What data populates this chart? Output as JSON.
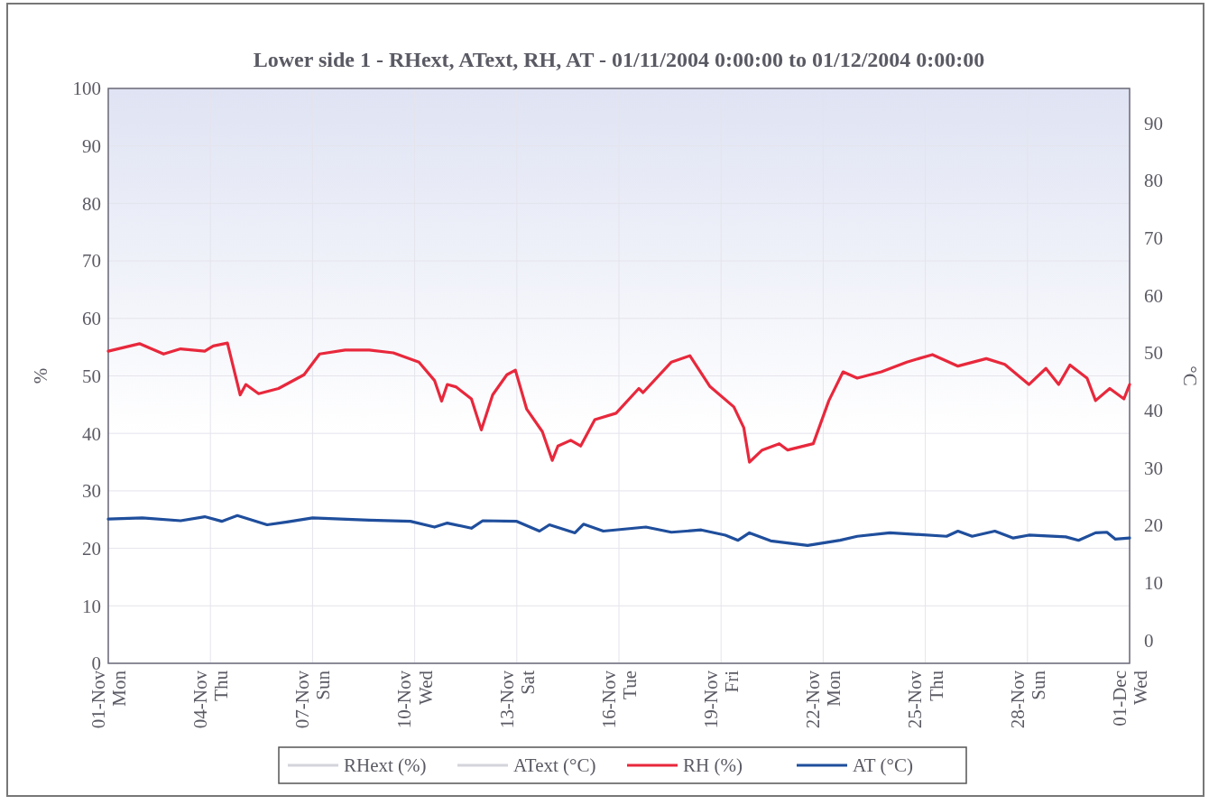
{
  "chart_data": {
    "type": "line",
    "title": "Lower side 1 - RHext, AText, RH, AT - 01/11/2004 0:00:00 to 01/12/2004 0:00:00",
    "ylabel": "%",
    "y2label": "°C",
    "xlim": [
      "2004-11-01T00:00",
      "2004-12-01T00:00"
    ],
    "xticks": [
      {
        "value": "2004-11-01",
        "label": "01-Nov\nMon"
      },
      {
        "value": "2004-11-04",
        "label": "04-Nov\nThu"
      },
      {
        "value": "2004-11-07",
        "label": "07-Nov\nSun"
      },
      {
        "value": "2004-11-10",
        "label": "10-Nov\nWed"
      },
      {
        "value": "2004-11-13",
        "label": "13-Nov\nSat"
      },
      {
        "value": "2004-11-16",
        "label": "16-Nov\nTue"
      },
      {
        "value": "2004-11-19",
        "label": "19-Nov\nFri"
      },
      {
        "value": "2004-11-22",
        "label": "22-Nov\nMon"
      },
      {
        "value": "2004-11-25",
        "label": "25-Nov\nThu"
      },
      {
        "value": "2004-11-28",
        "label": "28-Nov\nSun"
      },
      {
        "value": "2004-12-01",
        "label": "01-Dec\nWed"
      }
    ],
    "ylim": [
      0,
      100
    ],
    "yticks": [
      0,
      10,
      20,
      30,
      40,
      50,
      60,
      70,
      80,
      90,
      100
    ],
    "y2lim": [
      -4,
      96
    ],
    "y2ticks": [
      0,
      10,
      20,
      30,
      40,
      50,
      60,
      70,
      80,
      90
    ],
    "grid": true,
    "legend": "bottom",
    "line_style": "solid",
    "marker": "none",
    "series": [
      {
        "name": "RHext (%)",
        "color": "#d4d4dc"
      },
      {
        "name": "AText (°C)",
        "color": "#d4d4dc"
      },
      {
        "name": "RH (%)",
        "color": "#e8283c",
        "x": [
          "2004-11-01T00:00",
          "2004-11-01T22:00",
          "2004-11-02T15:00",
          "2004-11-03T03:00",
          "2004-11-03T20:00",
          "2004-11-04T02:00",
          "2004-11-04T12:00",
          "2004-11-04T21:00",
          "2004-11-05T01:00",
          "2004-11-05T10:00",
          "2004-11-06T00:00",
          "2004-11-06T18:00",
          "2004-11-07T05:00",
          "2004-11-07T23:00",
          "2004-11-08T16:00",
          "2004-11-09T09:00",
          "2004-11-10T03:00",
          "2004-11-10T14:00",
          "2004-11-10T19:00",
          "2004-11-10T23:00",
          "2004-11-11T05:00",
          "2004-11-11T16:00",
          "2004-11-11T23:00",
          "2004-11-12T07:00",
          "2004-11-12T17:00",
          "2004-11-12T23:00",
          "2004-11-13T07:00",
          "2004-11-13T18:00",
          "2004-11-14T01:00",
          "2004-11-14T05:00",
          "2004-11-14T14:00",
          "2004-11-14T21:00",
          "2004-11-15T07:00",
          "2004-11-15T22:00",
          "2004-11-16T14:00",
          "2004-11-16T17:00",
          "2004-11-17T13:00",
          "2004-11-18T02:00",
          "2004-11-18T16:00",
          "2004-11-19T09:00",
          "2004-11-19T16:00",
          "2004-11-19T20:00",
          "2004-11-20T05:00",
          "2004-11-20T17:00",
          "2004-11-20T23:00",
          "2004-11-21T17:00",
          "2004-11-22T04:00",
          "2004-11-22T14:00",
          "2004-11-23T00:00",
          "2004-11-23T17:00",
          "2004-11-24T11:00",
          "2004-11-25T05:00",
          "2004-11-25T23:00",
          "2004-11-26T19:00",
          "2004-11-27T08:00",
          "2004-11-28T01:00",
          "2004-11-28T13:00",
          "2004-11-28T22:00",
          "2004-11-29T06:00",
          "2004-11-29T18:00",
          "2004-11-30T00:00",
          "2004-11-30T10:00",
          "2004-11-30T20:00",
          "2004-12-01T00:00"
        ],
        "values": [
          54.3,
          55.6,
          53.8,
          54.7,
          54.3,
          55.2,
          55.7,
          46.7,
          48.5,
          46.9,
          47.8,
          50.2,
          53.8,
          54.5,
          54.5,
          54,
          52.4,
          49.2,
          45.6,
          48.5,
          48.1,
          46,
          40.6,
          46.7,
          50.2,
          51,
          44.2,
          40.3,
          35.3,
          37.8,
          38.8,
          37.8,
          42.4,
          43.5,
          47.8,
          47.1,
          52.4,
          53.5,
          48.2,
          44.6,
          41,
          35,
          37.1,
          38.2,
          37.1,
          38.2,
          45.7,
          50.7,
          49.6,
          50.7,
          52.4,
          53.7,
          51.7,
          53,
          52,
          48.5,
          51.3,
          48.5,
          51.9,
          49.6,
          45.7,
          47.8,
          46,
          48.5
        ]
      },
      {
        "name": "AT (°C)",
        "color": "#1f4e9c",
        "axis": "y2",
        "x": [
          "2004-11-01T00:00",
          "2004-11-02T00:00",
          "2004-11-03T03:00",
          "2004-11-03T20:00",
          "2004-11-04T08:00",
          "2004-11-04T19:00",
          "2004-11-05T16:00",
          "2004-11-06T06:00",
          "2004-11-07T00:00",
          "2004-11-08T16:00",
          "2004-11-09T21:00",
          "2004-11-10T14:00",
          "2004-11-10T23:00",
          "2004-11-11T16:00",
          "2004-11-12T00:00",
          "2004-11-13T00:00",
          "2004-11-13T16:00",
          "2004-11-13T23:00",
          "2004-11-14T17:00",
          "2004-11-14T23:00",
          "2004-11-15T13:00",
          "2004-11-16T19:00",
          "2004-11-17T13:00",
          "2004-11-18T10:00",
          "2004-11-19T03:00",
          "2004-11-19T12:00",
          "2004-11-19T20:00",
          "2004-11-20T11:00",
          "2004-11-21T13:00",
          "2004-11-22T12:00",
          "2004-11-23T00:00",
          "2004-11-23T23:00",
          "2004-11-25T15:00",
          "2004-11-25T23:00",
          "2004-11-26T09:00",
          "2004-11-27T01:00",
          "2004-11-27T14:00",
          "2004-11-28T01:00",
          "2004-11-29T03:00",
          "2004-11-29T12:00",
          "2004-11-30T00:00",
          "2004-11-30T08:00",
          "2004-11-30T14:00",
          "2004-12-01T00:00"
        ],
        "values": [
          21.1,
          21.3,
          20.8,
          21.5,
          20.7,
          21.7,
          20.1,
          20.6,
          21.3,
          20.9,
          20.7,
          19.7,
          20.4,
          19.5,
          20.8,
          20.7,
          19.0,
          20.1,
          18.7,
          20.2,
          19.0,
          19.7,
          18.8,
          19.2,
          18.3,
          17.4,
          18.7,
          17.3,
          16.5,
          17.4,
          18.1,
          18.7,
          18.1,
          19.0,
          18.1,
          19.0,
          17.8,
          18.3,
          18.0,
          17.4,
          18.7,
          18.8,
          17.6,
          17.8
        ]
      }
    ]
  }
}
